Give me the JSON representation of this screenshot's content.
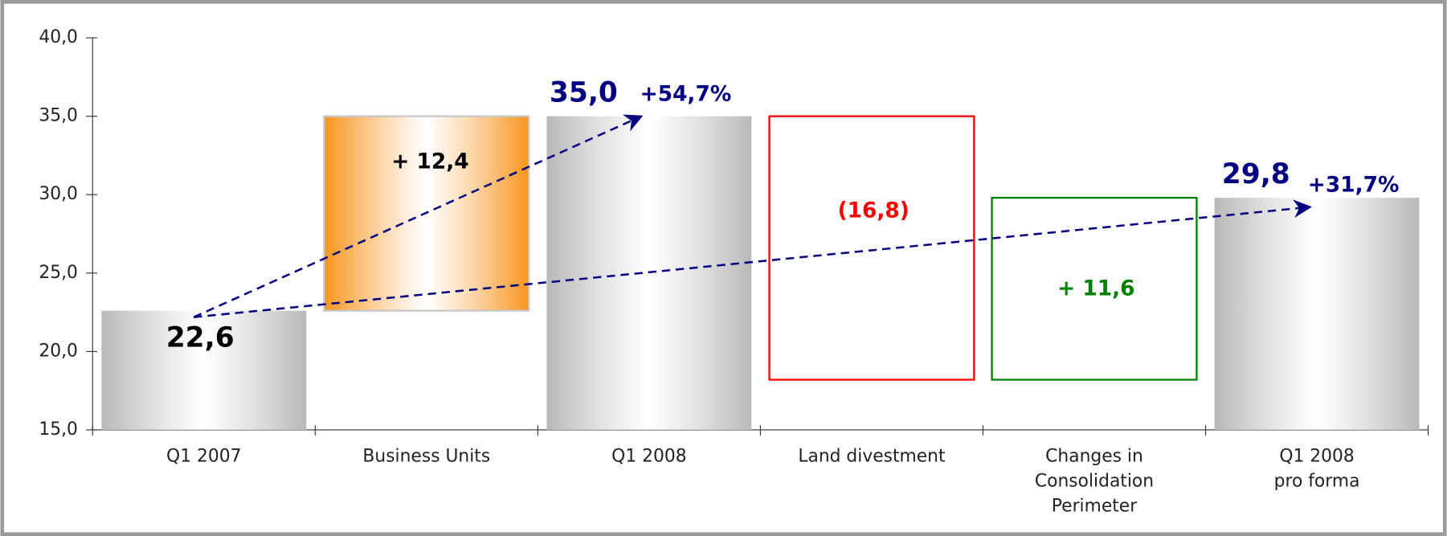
{
  "chart_data": {
    "type": "waterfall",
    "categories": [
      "Q1 2007",
      "Business Units",
      "Q1 2008",
      "Land divestment",
      "Changes in\nConsolidation\nPerimeter",
      "Q1 2008\npro forma"
    ],
    "values": [
      22.6,
      12.4,
      35.0,
      -16.8,
      11.6,
      29.8
    ],
    "value_labels": [
      "22,6",
      "+ 12,4",
      "35,0",
      "(16,8)",
      "+ 11,6",
      "29,8"
    ],
    "measure": [
      "absolute",
      "relative",
      "absolute",
      "relative",
      "relative",
      "absolute"
    ],
    "colors": [
      "#b8b8b8",
      "#f7941d",
      "#b8b8b8",
      "#ff0000",
      "#008000",
      "#b8b8b8"
    ],
    "styles": [
      "gradient",
      "gradient",
      "gradient",
      "outline",
      "outline",
      "gradient"
    ],
    "label_colors": [
      "#000000",
      "#000000",
      "#000080",
      "#ff0000",
      "#008000",
      "#000080"
    ],
    "annotations": [
      "+54,7%",
      "+31,7%"
    ],
    "ylim": [
      15,
      40
    ],
    "yticks": [
      {
        "value": 15,
        "label": "15,0"
      },
      {
        "value": 20,
        "label": "20,0"
      },
      {
        "value": 25,
        "label": "25,0"
      },
      {
        "value": 30,
        "label": "30,0"
      },
      {
        "value": 35,
        "label": "35,0"
      },
      {
        "value": 40,
        "label": "40,0"
      }
    ]
  }
}
